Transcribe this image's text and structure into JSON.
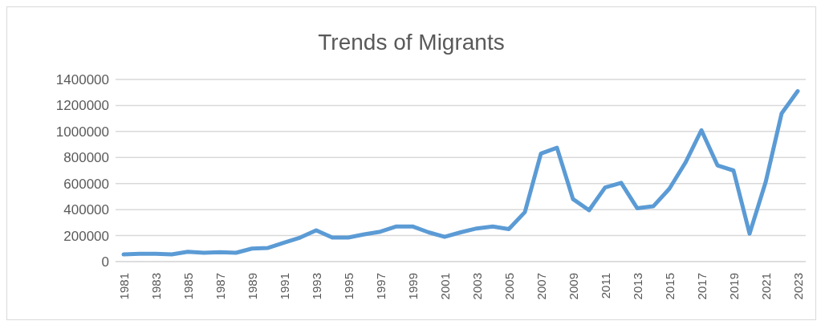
{
  "chart_data": {
    "type": "line",
    "title": "Trends of Migrants",
    "categories": [
      "1981",
      null,
      "1983",
      null,
      "1985",
      null,
      "1987",
      null,
      "1989",
      null,
      "1991",
      null,
      "1993",
      null,
      "1995",
      null,
      "1997",
      null,
      "1999",
      null,
      "2001",
      null,
      "2003",
      null,
      "2005",
      null,
      "2007",
      null,
      "2009",
      null,
      "2011",
      null,
      "2013",
      null,
      "2015",
      null,
      "2017",
      null,
      "2019",
      null,
      "2021",
      null,
      "2023"
    ],
    "series": [
      {
        "color": "#5b9bd5",
        "values": [
          55000,
          60000,
          60000,
          55000,
          75000,
          68000,
          72000,
          68000,
          100000,
          105000,
          145000,
          185000,
          240000,
          185000,
          185000,
          210000,
          230000,
          270000,
          270000,
          225000,
          190000,
          225000,
          255000,
          270000,
          250000,
          380000,
          830000,
          875000,
          480000,
          395000,
          570000,
          605000,
          410000,
          425000,
          560000,
          760000,
          1010000,
          740000,
          700000,
          215000,
          610000,
          1140000,
          1310000
        ]
      }
    ],
    "ylim": [
      0,
      1400000
    ],
    "yticks": [
      0,
      200000,
      400000,
      600000,
      800000,
      1000000,
      1200000,
      1400000
    ],
    "grid": "y",
    "legend": false,
    "marker": "none",
    "line_style": "solid"
  }
}
